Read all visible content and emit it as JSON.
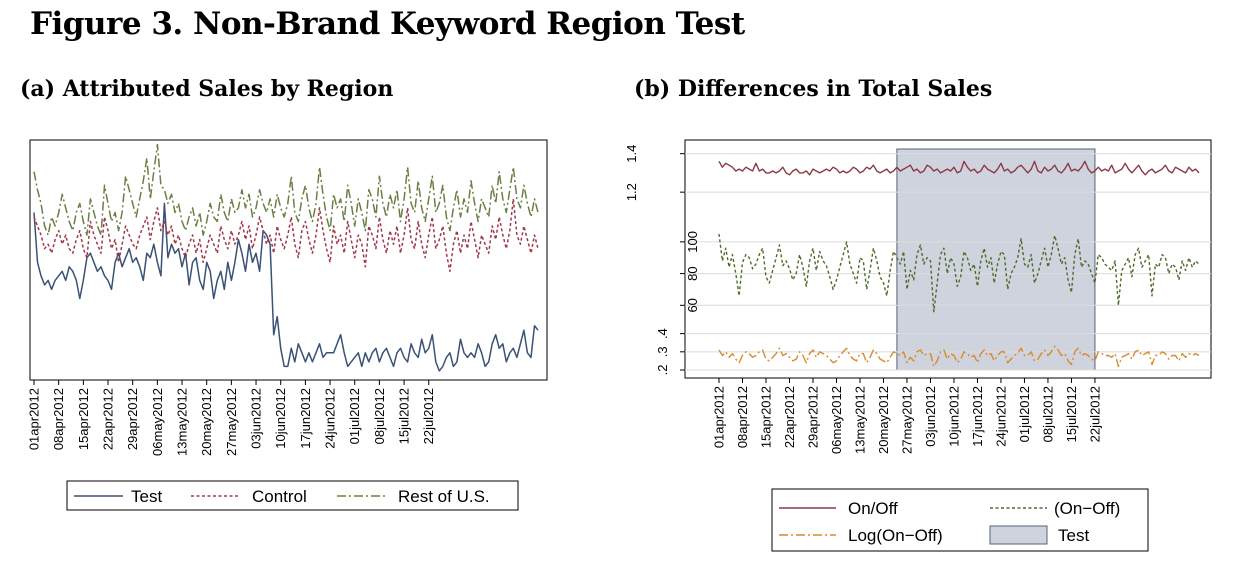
{
  "figure_title": "Figure 3.  Non-Brand Keyword Region Test",
  "chart_data": [
    {
      "panel": "(a) Attributed Sales by Region",
      "type": "line",
      "x_tick_labels": [
        "01apr2012",
        "08apr2012",
        "15apr2012",
        "22apr2012",
        "29apr2012",
        "06may2012",
        "13may2012",
        "20may2012",
        "27may2012",
        "03jun2012",
        "10jun2012",
        "17jun2012",
        "24jun2012",
        "01jul2012",
        "08jul2012",
        "15jul2012",
        "22jul2012"
      ],
      "x_start": "2012-04-01",
      "x_end": "2012-07-22",
      "y_axis_labels_shown": false,
      "grid": false,
      "legend_position": "bottom",
      "series": [
        {
          "name": "Test",
          "color": "#3a5275",
          "dash": "solid",
          "values": [
            0.97,
            0.86,
            0.83,
            0.81,
            0.82,
            0.8,
            0.82,
            0.83,
            0.84,
            0.82,
            0.85,
            0.84,
            0.82,
            0.78,
            0.82,
            0.87,
            0.88,
            0.86,
            0.84,
            0.85,
            0.83,
            0.82,
            0.8,
            0.86,
            0.88,
            0.85,
            0.87,
            0.89,
            0.86,
            0.87,
            0.85,
            0.82,
            0.88,
            0.87,
            0.9,
            0.86,
            0.83,
            0.99,
            0.87,
            0.9,
            0.88,
            0.89,
            0.85,
            0.88,
            0.81,
            0.86,
            0.87,
            0.82,
            0.8,
            0.86,
            0.84,
            0.78,
            0.82,
            0.84,
            0.8,
            0.86,
            0.82,
            0.86,
            0.91,
            0.88,
            0.84,
            0.9,
            0.86,
            0.88,
            0.84,
            0.93,
            0.92,
            0.9,
            0.7,
            0.74,
            0.67,
            0.63,
            0.63,
            0.67,
            0.64,
            0.68,
            0.66,
            0.64,
            0.66,
            0.64,
            0.66,
            0.68,
            0.65,
            0.66,
            0.66,
            0.66,
            0.68,
            0.7,
            0.66,
            0.63,
            0.64,
            0.65,
            0.66,
            0.63,
            0.66,
            0.64,
            0.66,
            0.67,
            0.64,
            0.66,
            0.67,
            0.65,
            0.63,
            0.66,
            0.67,
            0.65,
            0.64,
            0.68,
            0.66,
            0.65,
            0.69,
            0.66,
            0.67,
            0.7,
            0.64,
            0.62,
            0.63,
            0.65,
            0.66,
            0.63,
            0.64,
            0.69,
            0.66,
            0.65,
            0.66,
            0.65,
            0.68,
            0.66,
            0.63,
            0.64,
            0.68,
            0.7,
            0.67,
            0.68,
            0.64,
            0.66,
            0.67,
            0.65,
            0.68,
            0.71,
            0.66,
            0.65,
            0.72,
            0.71
          ]
        },
        {
          "name": "Control",
          "color": "#a03848",
          "dash": "dotted",
          "values": [
            0.96,
            0.94,
            0.92,
            0.89,
            0.9,
            0.88,
            0.91,
            0.93,
            0.9,
            0.92,
            0.89,
            0.88,
            0.91,
            0.93,
            0.89,
            0.87,
            0.95,
            0.92,
            0.9,
            0.88,
            0.96,
            0.93,
            0.89,
            0.91,
            0.86,
            0.9,
            0.94,
            0.92,
            0.9,
            0.89,
            0.92,
            0.94,
            0.96,
            0.91,
            0.95,
            0.98,
            0.93,
            0.95,
            0.92,
            0.94,
            0.9,
            0.92,
            0.89,
            0.87,
            0.9,
            0.92,
            0.88,
            0.91,
            0.86,
            0.89,
            0.92,
            0.9,
            0.88,
            0.94,
            0.91,
            0.89,
            0.93,
            0.9,
            0.92,
            0.95,
            0.91,
            0.94,
            0.89,
            0.92,
            0.96,
            0.93,
            0.9,
            0.92,
            0.88,
            0.94,
            0.91,
            0.89,
            0.92,
            0.96,
            0.9,
            0.87,
            0.93,
            0.95,
            0.91,
            0.88,
            0.92,
            0.98,
            0.93,
            0.89,
            0.86,
            0.94,
            0.9,
            0.92,
            0.88,
            0.95,
            0.91,
            0.87,
            0.92,
            0.9,
            0.85,
            0.94,
            0.92,
            0.89,
            0.96,
            0.91,
            0.88,
            0.93,
            0.9,
            0.94,
            0.88,
            0.92,
            0.98,
            0.91,
            0.89,
            0.95,
            0.9,
            0.87,
            0.92,
            0.96,
            0.89,
            0.91,
            0.94,
            0.88,
            0.84,
            0.9,
            0.93,
            0.88,
            0.92,
            0.89,
            0.95,
            0.91,
            0.87,
            0.92,
            0.9,
            0.88,
            0.94,
            0.91,
            0.96,
            0.92,
            0.89,
            0.93,
            1.0,
            0.92,
            0.9,
            0.94,
            0.91,
            0.88,
            0.92,
            0.89
          ]
        },
        {
          "name": "Rest of U.S.",
          "color": "#6b7f44",
          "dash": "dashdot",
          "values": [
            1.06,
            1.02,
            0.99,
            0.94,
            0.92,
            0.96,
            0.94,
            0.97,
            1.01,
            0.98,
            0.95,
            0.93,
            0.97,
            0.99,
            0.95,
            0.92,
            1.0,
            0.97,
            0.94,
            0.92,
            1.03,
            0.99,
            0.95,
            0.97,
            0.93,
            0.97,
            1.05,
            1.02,
            0.99,
            0.96,
            1.0,
            1.04,
            1.09,
            1.0,
            1.06,
            1.12,
            1.03,
            1.02,
            0.99,
            1.01,
            0.97,
            0.99,
            0.95,
            0.93,
            0.96,
            0.98,
            0.94,
            0.97,
            0.92,
            0.95,
            0.99,
            0.96,
            0.95,
            1.01,
            0.97,
            0.95,
            1.0,
            0.97,
            0.98,
            1.02,
            0.98,
            1.01,
            0.96,
            0.98,
            1.02,
            0.99,
            0.97,
            1.0,
            0.96,
            1.01,
            0.98,
            0.96,
            0.99,
            1.05,
            0.97,
            0.95,
            1.0,
            1.03,
            0.98,
            0.95,
            0.99,
            1.07,
            1.01,
            0.96,
            0.93,
            1.01,
            0.98,
            1.0,
            0.95,
            1.03,
            0.99,
            0.94,
            1.0,
            0.97,
            0.93,
            1.02,
            1.0,
            0.96,
            1.05,
            0.99,
            0.96,
            1.01,
            0.98,
            1.02,
            0.95,
            1.0,
            1.07,
            0.99,
            0.97,
            1.04,
            0.98,
            0.95,
            1.0,
            1.05,
            0.97,
            0.99,
            1.03,
            0.96,
            0.93,
            0.98,
            1.02,
            0.96,
            1.0,
            0.97,
            1.04,
            0.99,
            0.95,
            1.0,
            0.98,
            0.96,
            1.03,
            0.99,
            1.06,
            1.0,
            0.97,
            1.02,
            1.07,
            1.0,
            0.98,
            1.03,
            0.99,
            0.96,
            1.0,
            0.97
          ]
        }
      ],
      "legend": [
        "Test",
        "Control",
        "Rest of U.S."
      ]
    },
    {
      "panel": "(b) Differences in Total Sales",
      "type": "line",
      "x_tick_labels": [
        "01apr2012",
        "08apr2012",
        "15apr2012",
        "22apr2012",
        "29apr2012",
        "06may2012",
        "13may2012",
        "20may2012",
        "27may2012",
        "03jun2012",
        "10jun2012",
        "17jun2012",
        "24jun2012",
        "01jul2012",
        "08jul2012",
        "15jul2012",
        "22jul2012"
      ],
      "x_start": "2012-04-01",
      "x_end": "2012-07-22",
      "test_period": {
        "start": "2012-05-24",
        "end": "2012-07-22"
      },
      "y_axes": [
        {
          "series": "On/Off",
          "ticks": [
            "1.2",
            "1.4"
          ],
          "ylim": [
            1.18,
            1.44
          ]
        },
        {
          "series": "(On−Off)",
          "ticks": [
            "60",
            "80",
            "100"
          ],
          "ylim": [
            52,
            110
          ]
        },
        {
          "series": "Log(On−Off)",
          "ticks": [
            ".2",
            ".3",
            ".4"
          ],
          "ylim": [
            0.2,
            0.42
          ]
        }
      ],
      "grid": true,
      "legend_position": "bottom",
      "series": [
        {
          "name": "On/Off",
          "color": "#8b3a46",
          "dash": "solid",
          "values": [
            1.36,
            1.33,
            1.35,
            1.34,
            1.33,
            1.31,
            1.32,
            1.31,
            1.33,
            1.32,
            1.31,
            1.35,
            1.31,
            1.32,
            1.3,
            1.3,
            1.31,
            1.3,
            1.31,
            1.33,
            1.3,
            1.29,
            1.31,
            1.32,
            1.3,
            1.3,
            1.31,
            1.29,
            1.32,
            1.31,
            1.3,
            1.31,
            1.32,
            1.31,
            1.33,
            1.32,
            1.3,
            1.31,
            1.3,
            1.31,
            1.33,
            1.32,
            1.3,
            1.31,
            1.33,
            1.32,
            1.34,
            1.31,
            1.3,
            1.31,
            1.32,
            1.3,
            1.31,
            1.33,
            1.31,
            1.32,
            1.33,
            1.34,
            1.31,
            1.32,
            1.3,
            1.31,
            1.34,
            1.33,
            1.31,
            1.32,
            1.3,
            1.31,
            1.32,
            1.31,
            1.33,
            1.3,
            1.31,
            1.36,
            1.33,
            1.31,
            1.32,
            1.3,
            1.31,
            1.34,
            1.32,
            1.31,
            1.3,
            1.32,
            1.35,
            1.31,
            1.32,
            1.3,
            1.31,
            1.33,
            1.34,
            1.32,
            1.3,
            1.32,
            1.36,
            1.31,
            1.3,
            1.33,
            1.31,
            1.32,
            1.34,
            1.31,
            1.3,
            1.32,
            1.35,
            1.31,
            1.32,
            1.31,
            1.33,
            1.36,
            1.32,
            1.3,
            1.31,
            1.33,
            1.31,
            1.32,
            1.31,
            1.34,
            1.3,
            1.31,
            1.32,
            1.35,
            1.32,
            1.3,
            1.32,
            1.34,
            1.31,
            1.29,
            1.31,
            1.32,
            1.3,
            1.31,
            1.32,
            1.34,
            1.31,
            1.3,
            1.33,
            1.32,
            1.31,
            1.3,
            1.33,
            1.31,
            1.32,
            1.3
          ]
        },
        {
          "name": "(On−Off)",
          "color": "#4d6b2a",
          "dash": "dotted",
          "values": [
            105,
            88,
            96,
            84,
            92,
            80,
            66,
            87,
            92,
            90,
            83,
            86,
            92,
            96,
            78,
            74,
            82,
            90,
            98,
            85,
            88,
            83,
            76,
            80,
            92,
            84,
            72,
            88,
            96,
            82,
            94,
            88,
            85,
            78,
            70,
            76,
            84,
            92,
            100,
            86,
            80,
            74,
            90,
            88,
            70,
            82,
            96,
            88,
            78,
            74,
            66,
            82,
            94,
            90,
            86,
            94,
            70,
            82,
            76,
            92,
            98,
            86,
            90,
            88,
            56,
            74,
            92,
            96,
            80,
            90,
            86,
            72,
            78,
            94,
            90,
            82,
            86,
            72,
            88,
            96,
            84,
            90,
            74,
            86,
            94,
            92,
            70,
            80,
            84,
            90,
            102,
            86,
            84,
            92,
            74,
            80,
            88,
            96,
            84,
            92,
            104,
            96,
            86,
            90,
            76,
            68,
            92,
            102,
            84,
            88,
            86,
            80,
            74,
            92,
            90,
            86,
            84,
            82,
            88,
            60,
            82,
            86,
            90,
            78,
            92,
            96,
            84,
            88,
            92,
            66,
            86,
            84,
            92,
            90,
            80,
            86,
            84,
            76,
            88,
            82,
            90,
            84,
            88,
            86
          ]
        },
        {
          "name": "Log(On−Off)",
          "color": "#d98a2a",
          "dash": "dashdot",
          "values": [
            0.31,
            0.28,
            0.3,
            0.27,
            0.29,
            0.26,
            0.24,
            0.28,
            0.3,
            0.29,
            0.27,
            0.28,
            0.3,
            0.31,
            0.26,
            0.25,
            0.27,
            0.29,
            0.32,
            0.28,
            0.29,
            0.27,
            0.25,
            0.26,
            0.3,
            0.28,
            0.24,
            0.29,
            0.31,
            0.27,
            0.3,
            0.29,
            0.28,
            0.26,
            0.24,
            0.25,
            0.28,
            0.3,
            0.32,
            0.28,
            0.26,
            0.25,
            0.29,
            0.29,
            0.24,
            0.27,
            0.31,
            0.29,
            0.26,
            0.25,
            0.24,
            0.27,
            0.3,
            0.29,
            0.28,
            0.3,
            0.24,
            0.27,
            0.25,
            0.3,
            0.31,
            0.28,
            0.29,
            0.29,
            0.22,
            0.25,
            0.3,
            0.31,
            0.26,
            0.29,
            0.28,
            0.24,
            0.26,
            0.3,
            0.29,
            0.27,
            0.28,
            0.24,
            0.29,
            0.31,
            0.28,
            0.29,
            0.25,
            0.28,
            0.3,
            0.3,
            0.24,
            0.26,
            0.28,
            0.29,
            0.32,
            0.28,
            0.28,
            0.3,
            0.25,
            0.26,
            0.29,
            0.31,
            0.28,
            0.3,
            0.33,
            0.31,
            0.28,
            0.29,
            0.25,
            0.23,
            0.3,
            0.32,
            0.28,
            0.29,
            0.28,
            0.26,
            0.25,
            0.3,
            0.29,
            0.28,
            0.28,
            0.27,
            0.29,
            0.22,
            0.27,
            0.28,
            0.29,
            0.26,
            0.3,
            0.31,
            0.28,
            0.29,
            0.3,
            0.23,
            0.28,
            0.28,
            0.3,
            0.29,
            0.26,
            0.28,
            0.28,
            0.25,
            0.29,
            0.27,
            0.29,
            0.28,
            0.29,
            0.28
          ]
        }
      ],
      "legend": [
        "On/Off",
        "(On−Off)",
        "Log(On−Off)",
        "Test"
      ],
      "test_fill": "#cfd3de"
    }
  ]
}
